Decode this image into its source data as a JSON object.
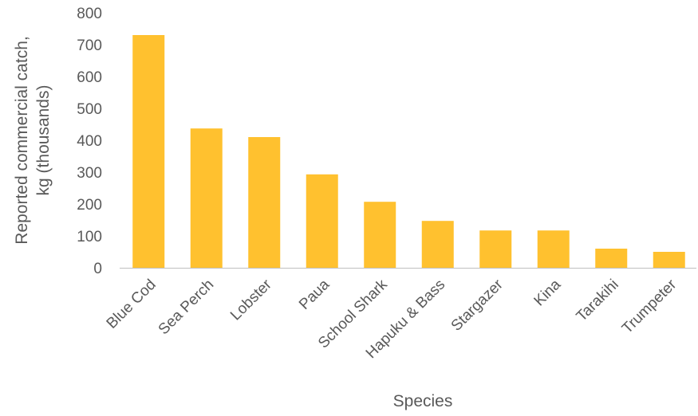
{
  "chart_data": {
    "type": "bar",
    "title": "",
    "xlabel": "Species",
    "ylabel_lines": [
      "Reported commercial catch,",
      "kg (thousands)"
    ],
    "categories": [
      "Blue Cod",
      "Sea Perch",
      "Lobster",
      "Paua",
      "School Shark",
      "Hapuku & Bass",
      "Stargazer",
      "Kina",
      "Tarakihi",
      "Trumpeter"
    ],
    "values": [
      730,
      437,
      410,
      293,
      207,
      147,
      117,
      117,
      60,
      50
    ],
    "ylim": [
      0,
      800
    ],
    "yticks": [
      0,
      100,
      200,
      300,
      400,
      500,
      600,
      700,
      800
    ],
    "grid": false,
    "legend": "none",
    "bar_color": "#FFC12F",
    "axis_color": "#BFBFBF",
    "text_color": "#595959"
  }
}
